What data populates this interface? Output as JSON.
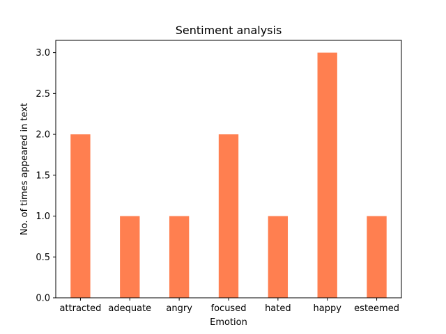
{
  "chart_data": {
    "type": "bar",
    "title": "Sentiment analysis",
    "xlabel": "Emotion",
    "ylabel": "No. of times appeared in text",
    "categories": [
      "attracted",
      "adequate",
      "angry",
      "focused",
      "hated",
      "happy",
      "esteemed"
    ],
    "values": [
      2,
      1,
      1,
      2,
      1,
      3,
      1
    ],
    "ylim": [
      0,
      3.15
    ],
    "yticks": [
      0.0,
      0.5,
      1.0,
      1.5,
      2.0,
      2.5,
      3.0
    ],
    "ytick_labels": [
      "0.0",
      "0.5",
      "1.0",
      "1.5",
      "2.0",
      "2.5",
      "3.0"
    ],
    "bar_color": "#ff7f50",
    "grid": false,
    "legend": "none"
  }
}
